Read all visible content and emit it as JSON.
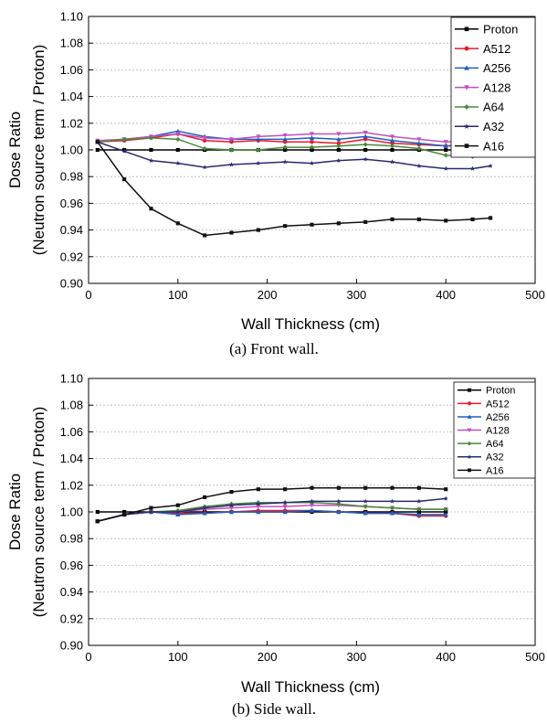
{
  "chart_data": [
    {
      "type": "line",
      "caption": "(a) Front wall.",
      "xlabel": "Wall Thickness (cm)",
      "ylabel_lines": [
        "Dose Ratio",
        "(Neutron source term / Proton)"
      ],
      "xlim": [
        0,
        500
      ],
      "ylim": [
        0.9,
        1.1
      ],
      "x_ticks": [
        "0",
        "100",
        "200",
        "300",
        "400",
        "500"
      ],
      "y_ticks": [
        "0.90",
        "0.92",
        "0.94",
        "0.96",
        "0.98",
        "1.00",
        "1.02",
        "1.04",
        "1.06",
        "1.08",
        "1.10"
      ],
      "grid": true,
      "legend_position": "top-right",
      "x": [
        10,
        40,
        70,
        100,
        130,
        160,
        190,
        220,
        250,
        280,
        310,
        340,
        370,
        400,
        430,
        450
      ],
      "series": [
        {
          "name": "Proton",
          "color": "#000000",
          "marker": "square",
          "values": [
            1.0,
            1.0,
            1.0,
            1.0,
            1.0,
            1.0,
            1.0,
            1.0,
            1.0,
            1.0,
            1.0,
            1.0,
            1.0,
            1.0,
            1.0,
            1.0
          ]
        },
        {
          "name": "A512",
          "color": "#e8192c",
          "marker": "circle",
          "values": [
            1.006,
            1.007,
            1.009,
            1.012,
            1.007,
            1.006,
            1.007,
            1.006,
            1.006,
            1.005,
            1.008,
            1.005,
            1.004,
            1.003,
            1.004,
            1.003
          ]
        },
        {
          "name": "A256",
          "color": "#1f5fbf",
          "marker": "triangle-up",
          "values": [
            1.006,
            1.008,
            1.01,
            1.014,
            1.01,
            1.008,
            1.008,
            1.008,
            1.009,
            1.008,
            1.01,
            1.007,
            1.005,
            1.003,
            1.003,
            1.002
          ]
        },
        {
          "name": "A128",
          "color": "#c050c0",
          "marker": "triangle-down",
          "values": [
            1.007,
            1.008,
            1.01,
            1.012,
            1.009,
            1.008,
            1.01,
            1.011,
            1.012,
            1.012,
            1.013,
            1.01,
            1.008,
            1.006,
            1.007,
            1.005
          ]
        },
        {
          "name": "A64",
          "color": "#4a8a3a",
          "marker": "diamond",
          "values": [
            1.006,
            1.008,
            1.009,
            1.008,
            1.001,
            1.0,
            1.0,
            1.002,
            1.002,
            1.003,
            1.004,
            1.003,
            1.001,
            0.996,
            0.995,
            0.997
          ]
        },
        {
          "name": "A32",
          "color": "#2a2a70",
          "marker": "star",
          "values": [
            1.006,
            0.999,
            0.992,
            0.99,
            0.987,
            0.989,
            0.99,
            0.991,
            0.99,
            0.992,
            0.993,
            0.991,
            0.988,
            0.986,
            0.986,
            0.988
          ]
        },
        {
          "name": "A16",
          "color": "#111111",
          "marker": "square",
          "values": [
            1.006,
            0.978,
            0.956,
            0.945,
            0.936,
            0.938,
            0.94,
            0.943,
            0.944,
            0.945,
            0.946,
            0.948,
            0.948,
            0.947,
            0.948,
            0.949
          ]
        }
      ]
    },
    {
      "type": "line",
      "caption": "(b) Side wall.",
      "xlabel": "Wall Thickness (cm)",
      "ylabel_lines": [
        "Dose Ratio",
        "(Neutron source term / Proton)"
      ],
      "xlim": [
        0,
        500
      ],
      "ylim": [
        0.9,
        1.1
      ],
      "x_ticks": [
        "0",
        "100",
        "200",
        "300",
        "400",
        "500"
      ],
      "y_ticks": [
        "0.90",
        "0.92",
        "0.94",
        "0.96",
        "0.98",
        "1.00",
        "1.02",
        "1.04",
        "1.06",
        "1.08",
        "1.10"
      ],
      "grid": true,
      "legend_position": "top-right",
      "x": [
        10,
        40,
        70,
        100,
        130,
        160,
        190,
        220,
        250,
        280,
        310,
        340,
        370,
        400
      ],
      "series": [
        {
          "name": "Proton",
          "color": "#000000",
          "marker": "square",
          "values": [
            1.0,
            1.0,
            1.0,
            1.0,
            1.0,
            1.0,
            1.0,
            1.0,
            1.0,
            1.0,
            1.0,
            1.0,
            1.0,
            1.0
          ]
        },
        {
          "name": "A512",
          "color": "#e8192c",
          "marker": "circle",
          "values": [
            0.993,
            0.998,
            1.0,
            0.999,
            0.999,
            1.0,
            1.001,
            1.001,
            1.001,
            1.0,
            0.999,
            0.999,
            0.997,
            0.997
          ]
        },
        {
          "name": "A256",
          "color": "#1f5fbf",
          "marker": "triangle-up",
          "values": [
            0.993,
            0.998,
            1.0,
            0.998,
            0.999,
            1.0,
            1.0,
            1.0,
            1.001,
            1.0,
            0.999,
            0.999,
            0.998,
            0.998
          ]
        },
        {
          "name": "A128",
          "color": "#c050c0",
          "marker": "triangle-down",
          "values": [
            0.993,
            0.998,
            1.0,
            1.0,
            1.002,
            1.003,
            1.004,
            1.004,
            1.005,
            1.005,
            1.004,
            1.003,
            1.002,
            1.002
          ]
        },
        {
          "name": "A64",
          "color": "#4a8a3a",
          "marker": "diamond",
          "values": [
            0.993,
            0.998,
            1.0,
            1.001,
            1.004,
            1.006,
            1.007,
            1.007,
            1.007,
            1.006,
            1.004,
            1.003,
            1.002,
            1.002
          ]
        },
        {
          "name": "A32",
          "color": "#2a2a70",
          "marker": "star",
          "values": [
            0.993,
            0.998,
            1.0,
            1.0,
            1.003,
            1.005,
            1.006,
            1.007,
            1.008,
            1.008,
            1.008,
            1.008,
            1.008,
            1.01
          ]
        },
        {
          "name": "A16",
          "color": "#111111",
          "marker": "square",
          "values": [
            0.993,
            0.998,
            1.003,
            1.005,
            1.011,
            1.015,
            1.017,
            1.017,
            1.018,
            1.018,
            1.018,
            1.018,
            1.018,
            1.017
          ]
        }
      ]
    }
  ]
}
